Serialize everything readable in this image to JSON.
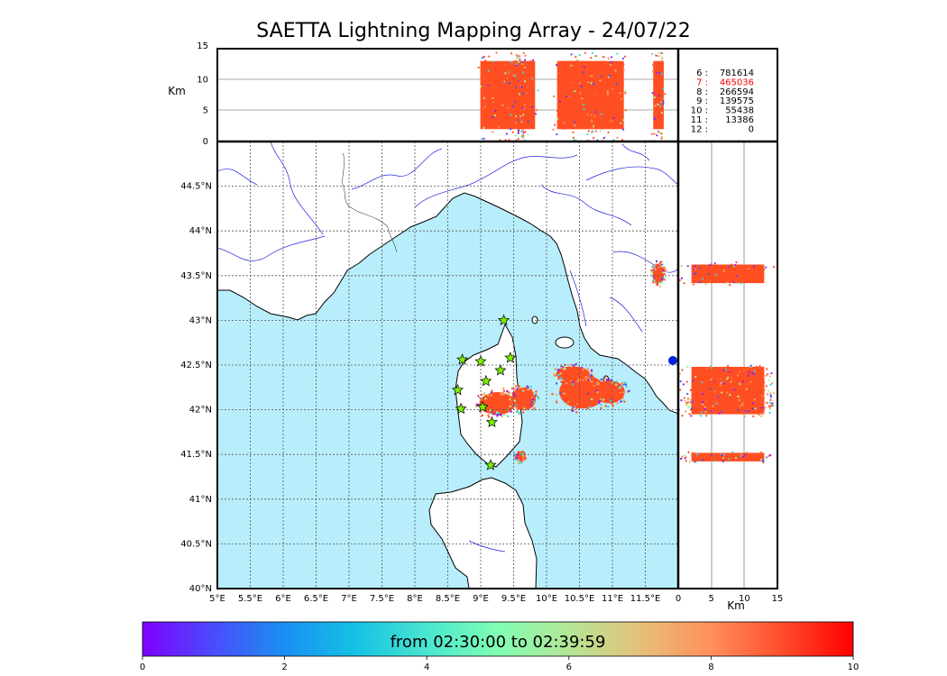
{
  "title": "SAETTA Lightning Mapping Array - 24/07/22",
  "colors": {
    "sea": "#b8eefb",
    "land": "#ffffff",
    "river": "#2222dd",
    "grid": "#555555",
    "dense": "#ff4f22",
    "high_count": "#ff0000"
  },
  "chart_data": {
    "type": "scatter",
    "map": {
      "lon_range": [
        5,
        12
      ],
      "lat_range": [
        40,
        45
      ],
      "lon_ticks": [
        "5°E",
        "5.5°E",
        "6°E",
        "6.5°E",
        "7°E",
        "7.5°E",
        "8°E",
        "8.5°E",
        "9°E",
        "9.5°E",
        "10°E",
        "10.5°E",
        "11°E",
        "11.5°E"
      ],
      "lat_ticks": [
        "40°N",
        "40.5°N",
        "41°N",
        "41.5°N",
        "42°N",
        "42.5°N",
        "43°N",
        "43.5°N",
        "44°N",
        "44.5°N"
      ],
      "grid": true
    },
    "top_panel": {
      "ylabel": "Km",
      "yticks": [
        "0",
        "5",
        "10",
        "15"
      ],
      "ylim": [
        0,
        15
      ]
    },
    "side_panel": {
      "xlabel": "Km",
      "xticks": [
        "0",
        "5",
        "10",
        "15"
      ],
      "xlim": [
        0,
        15
      ]
    },
    "counts": [
      {
        "label": "6 :",
        "value": "781614",
        "highlight": false
      },
      {
        "label": "7 :",
        "value": "465036",
        "highlight": true
      },
      {
        "label": "8 :",
        "value": "266594",
        "highlight": false
      },
      {
        "label": "9 :",
        "value": "139575",
        "highlight": false
      },
      {
        "label": "10 :",
        "value": "55438",
        "highlight": false
      },
      {
        "label": "11 :",
        "value": "13386",
        "highlight": false
      },
      {
        "label": "12 :",
        "value": "0",
        "highlight": false
      }
    ],
    "stations": [
      [
        9.35,
        43.0
      ],
      [
        8.72,
        42.56
      ],
      [
        9.0,
        42.54
      ],
      [
        9.45,
        42.58
      ],
      [
        9.3,
        42.44
      ],
      [
        8.65,
        42.22
      ],
      [
        9.08,
        42.32
      ],
      [
        8.7,
        42.01
      ],
      [
        9.03,
        42.03
      ],
      [
        9.17,
        41.86
      ],
      [
        9.15,
        41.38
      ]
    ],
    "clusters": [
      {
        "lon": 9.25,
        "lat": 42.07,
        "rlon": 0.32,
        "rlat": 0.15
      },
      {
        "lon": 9.65,
        "lat": 42.12,
        "rlon": 0.22,
        "rlat": 0.15
      },
      {
        "lon": 10.55,
        "lat": 42.2,
        "rlon": 0.42,
        "rlat": 0.22
      },
      {
        "lon": 10.95,
        "lat": 42.2,
        "rlon": 0.28,
        "rlat": 0.15
      },
      {
        "lon": 10.4,
        "lat": 42.4,
        "rlon": 0.3,
        "rlat": 0.1
      },
      {
        "lon": 11.7,
        "lat": 43.52,
        "rlon": 0.1,
        "rlat": 0.13
      },
      {
        "lon": 9.6,
        "lat": 41.47,
        "rlon": 0.08,
        "rlat": 0.06
      }
    ],
    "colorbar": {
      "label": "from 02:30:00 to 02:39:59",
      "range": [
        0,
        10
      ],
      "ticks": [
        "0",
        "2",
        "4",
        "6",
        "8",
        "10"
      ],
      "colormap": "rainbow"
    }
  }
}
